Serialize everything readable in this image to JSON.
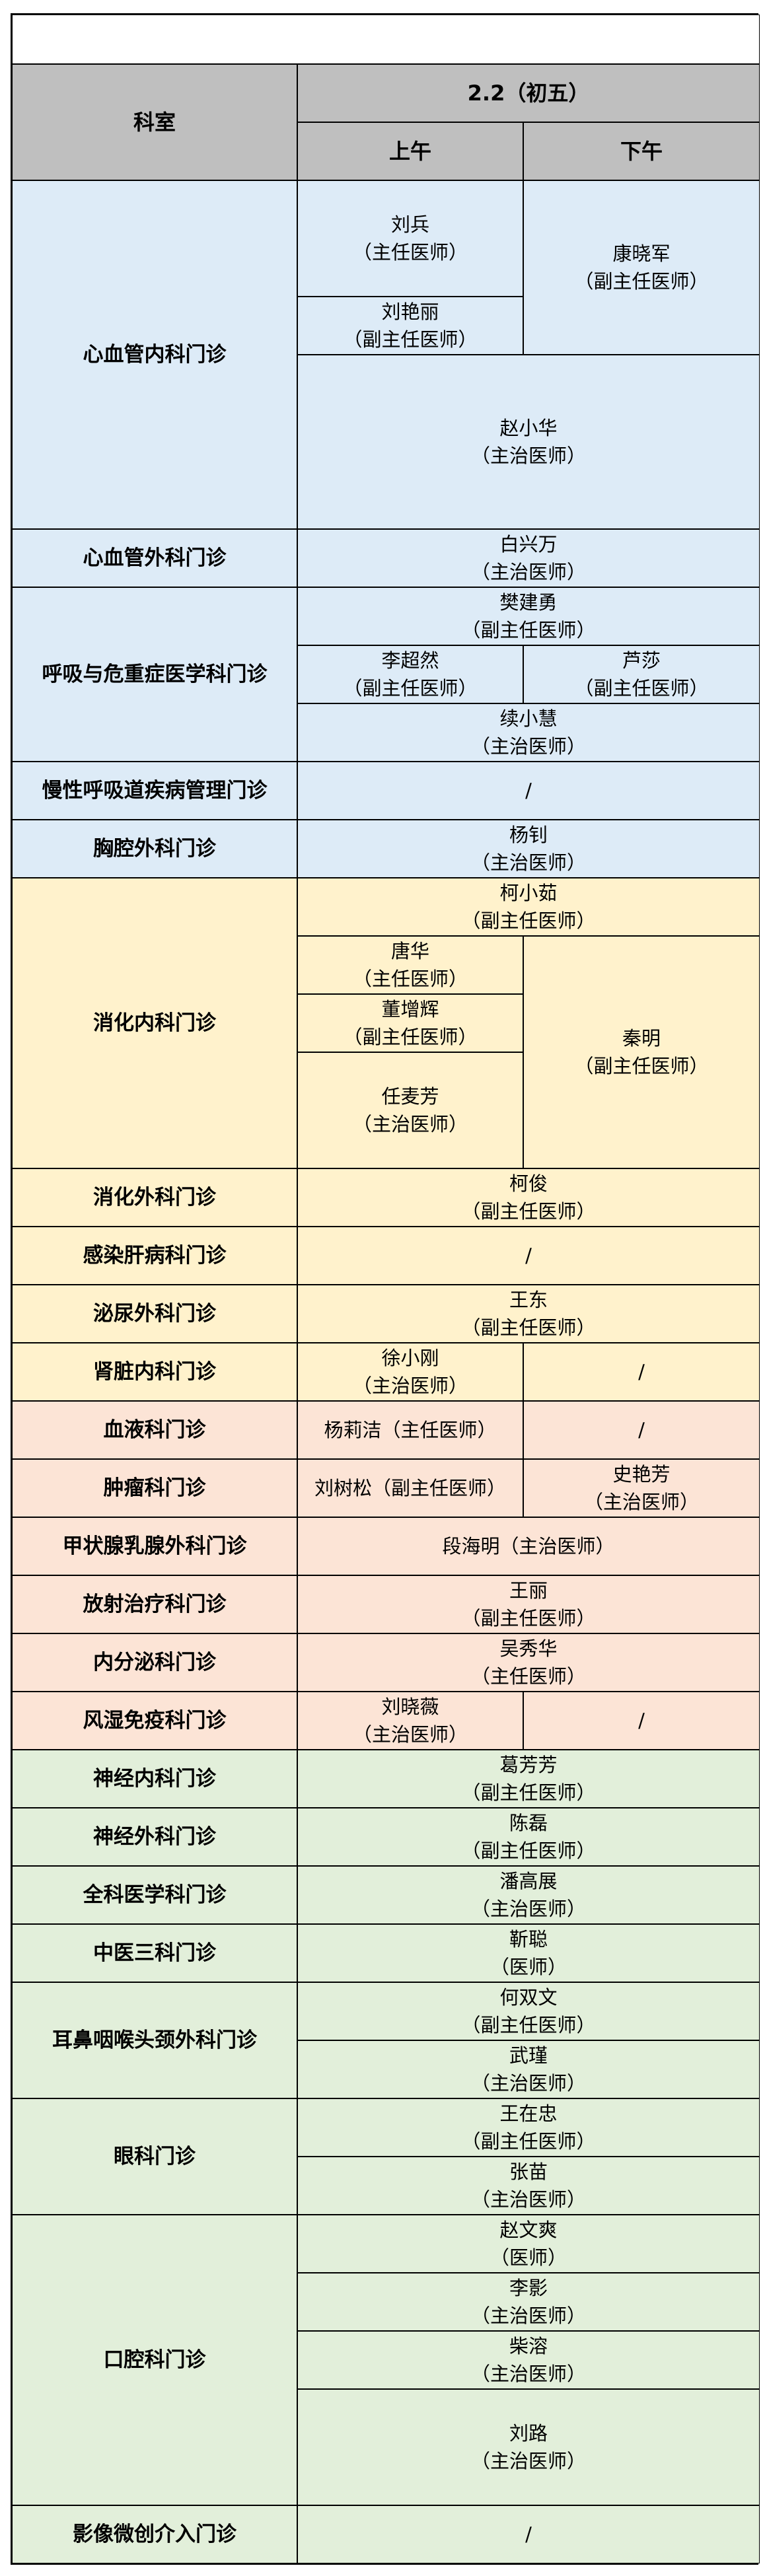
{
  "header": {
    "dept_label": "科室",
    "date_label": "2.2（初五）",
    "am_label": "上午",
    "pm_label": "下午"
  },
  "colors": {
    "header": "#bfbfbf",
    "blue": "#ddebf7",
    "yellow": "#fff2cc",
    "pink": "#fce4d6",
    "green": "#e2efda"
  },
  "departments": [
    {
      "name": "心血管内科门诊",
      "group": "blue",
      "doctors": [
        {
          "name": "刘兵",
          "title": "（主任医师）"
        },
        {
          "name": "刘艳丽",
          "title": "（副主任医师）"
        },
        {
          "name": "康晓军",
          "title": "（副主任医师）"
        },
        {
          "name": "赵小华",
          "title": "（主治医师）"
        }
      ]
    },
    {
      "name": "心血管外科门诊",
      "group": "blue",
      "doctors": [
        {
          "name": "白兴万",
          "title": "（主治医师）"
        }
      ]
    },
    {
      "name": "呼吸与危重症医学科门诊",
      "group": "blue",
      "doctors": [
        {
          "name": "樊建勇",
          "title": "（副主任医师）"
        },
        {
          "name": "李超然",
          "title": "（副主任医师）"
        },
        {
          "name": "芦莎",
          "title": "（副主任医师）"
        },
        {
          "name": "续小慧",
          "title": "（主治医师）"
        }
      ]
    },
    {
      "name": "慢性呼吸道疾病管理门诊",
      "group": "blue",
      "doctors": [
        {
          "name": "/"
        }
      ]
    },
    {
      "name": "胸腔外科门诊",
      "group": "blue",
      "doctors": [
        {
          "name": "杨钊",
          "title": "（主治医师）"
        }
      ]
    },
    {
      "name": "消化内科门诊",
      "group": "yellow",
      "doctors": [
        {
          "name": "柯小茹",
          "title": "（副主任医师）"
        },
        {
          "name": "唐华",
          "title": "（主任医师）"
        },
        {
          "name": "董增辉",
          "title": "（副主任医师）"
        },
        {
          "name": "任麦芳",
          "title": "（主治医师）"
        },
        {
          "name": "秦明",
          "title": "（副主任医师）"
        }
      ]
    },
    {
      "name": "消化外科门诊",
      "group": "yellow",
      "doctors": [
        {
          "name": "柯俊",
          "title": "（副主任医师）"
        }
      ]
    },
    {
      "name": "感染肝病科门诊",
      "group": "yellow",
      "doctors": [
        {
          "name": "/"
        }
      ]
    },
    {
      "name": "泌尿外科门诊",
      "group": "yellow",
      "doctors": [
        {
          "name": "王东",
          "title": "（副主任医师）"
        }
      ]
    },
    {
      "name": "肾脏内科门诊",
      "group": "yellow",
      "doctors": [
        {
          "name": "徐小刚",
          "title": "（主治医师）"
        },
        {
          "name": "/"
        }
      ]
    },
    {
      "name": "血液科门诊",
      "group": "pink",
      "doctors": [
        {
          "name": "杨莉洁（主任医师）"
        },
        {
          "name": "/"
        }
      ]
    },
    {
      "name": "肿瘤科门诊",
      "group": "pink",
      "doctors": [
        {
          "name": "刘树松（副主任医师）"
        },
        {
          "name": "史艳芳",
          "title": "（主治医师）"
        }
      ]
    },
    {
      "name": "甲状腺乳腺外科门诊",
      "group": "pink",
      "doctors": [
        {
          "name": "段海明（主治医师）"
        }
      ]
    },
    {
      "name": "放射治疗科门诊",
      "group": "pink",
      "doctors": [
        {
          "name": "王丽",
          "title": "（副主任医师）"
        }
      ]
    },
    {
      "name": "内分泌科门诊",
      "group": "pink",
      "doctors": [
        {
          "name": "吴秀华",
          "title": "（主任医师）"
        }
      ]
    },
    {
      "name": "风湿免疫科门诊",
      "group": "pink",
      "doctors": [
        {
          "name": "刘晓薇",
          "title": "（主治医师）"
        },
        {
          "name": "/"
        }
      ]
    },
    {
      "name": "神经内科门诊",
      "group": "green",
      "doctors": [
        {
          "name": "葛芳芳",
          "title": "（副主任医师）"
        }
      ]
    },
    {
      "name": "神经外科门诊",
      "group": "green",
      "doctors": [
        {
          "name": "陈磊",
          "title": "（副主任医师）"
        }
      ]
    },
    {
      "name": "全科医学科门诊",
      "group": "green",
      "doctors": [
        {
          "name": "潘高展",
          "title": "（主治医师）"
        }
      ]
    },
    {
      "name": "中医三科门诊",
      "group": "green",
      "doctors": [
        {
          "name": "靳聪",
          "title": "（医师）"
        }
      ]
    },
    {
      "name": "耳鼻咽喉头颈外科门诊",
      "group": "green",
      "doctors": [
        {
          "name": "何双文",
          "title": "（副主任医师）"
        },
        {
          "name": "武瑾",
          "title": "（主治医师）"
        }
      ]
    },
    {
      "name": "眼科门诊",
      "group": "green",
      "doctors": [
        {
          "name": "王在忠",
          "title": "（副主任医师）"
        },
        {
          "name": "张苗",
          "title": "（主治医师）"
        }
      ]
    },
    {
      "name": "口腔科门诊",
      "group": "green",
      "doctors": [
        {
          "name": "赵文爽",
          "title": "（医师）"
        },
        {
          "name": "李影",
          "title": "（主治医师）"
        },
        {
          "name": "柴溶",
          "title": "（主治医师）"
        },
        {
          "name": "刘路",
          "title": "（主治医师）"
        }
      ]
    },
    {
      "name": "影像微创介入门诊",
      "group": "green",
      "doctors": [
        {
          "name": "/"
        }
      ]
    }
  ]
}
